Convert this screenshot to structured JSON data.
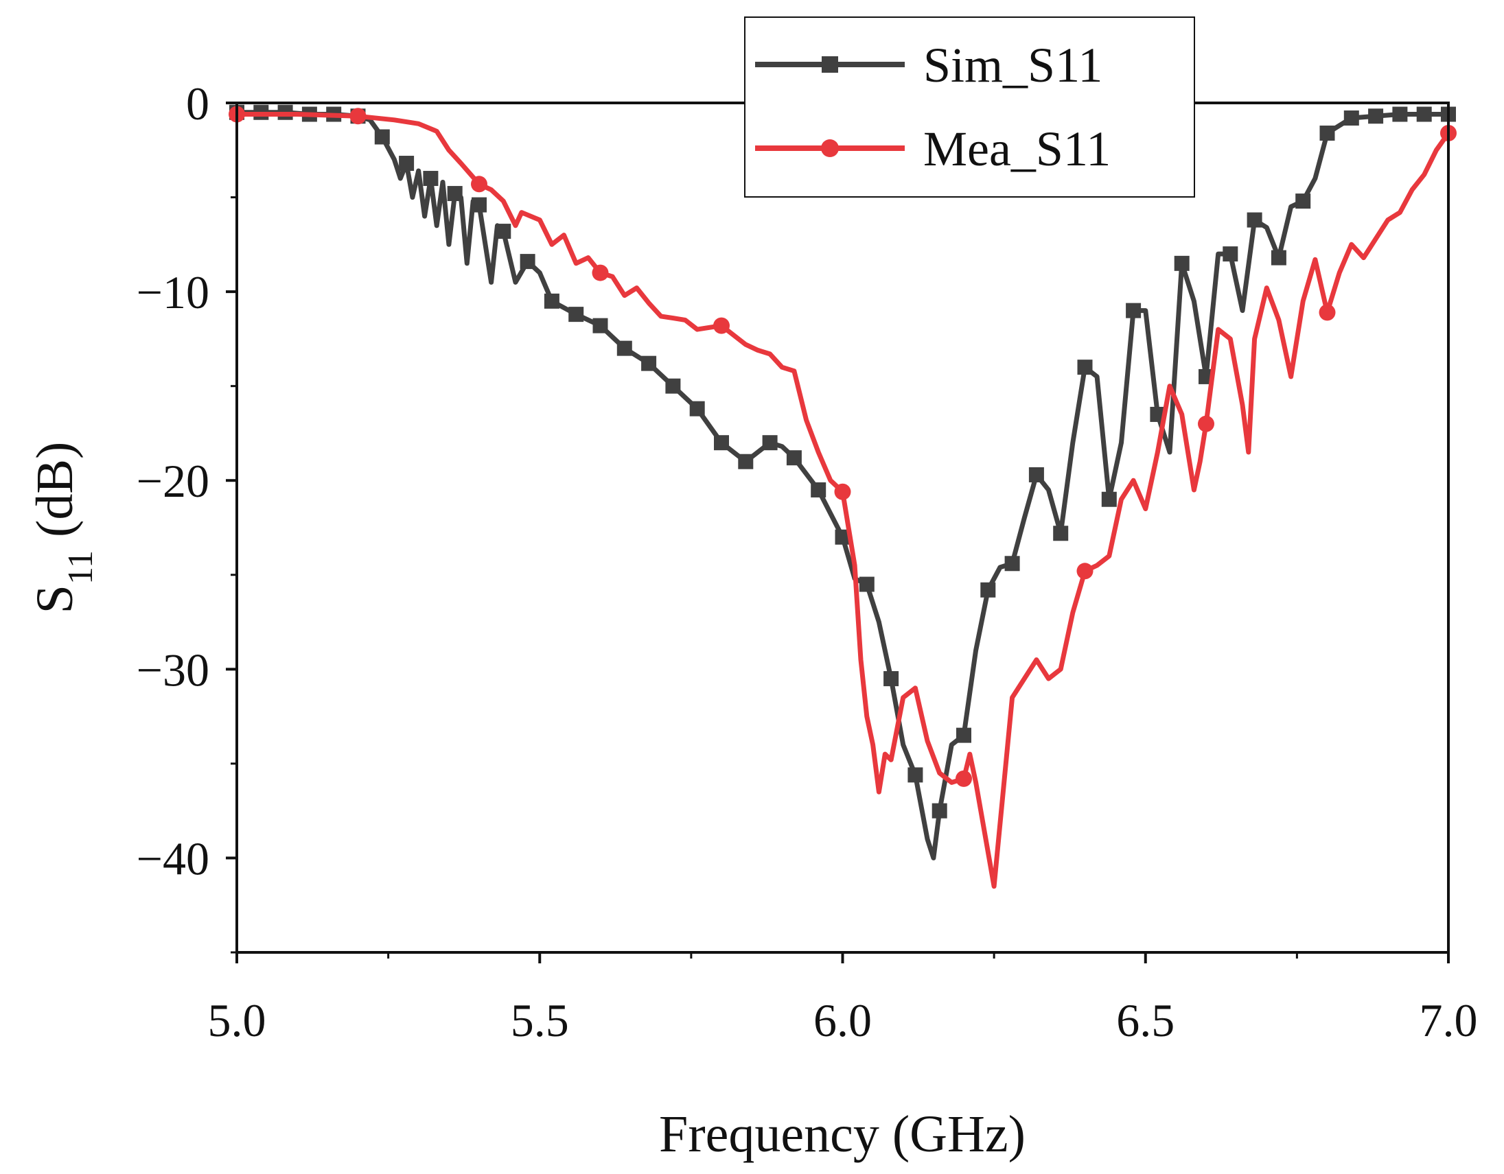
{
  "chart_data": {
    "type": "line",
    "xlabel": "Frequency (GHz)",
    "ylabel_main": "S",
    "ylabel_sub": "11",
    "ylabel_unit": " (dB)",
    "xlim": [
      5.0,
      7.0
    ],
    "ylim": [
      -45,
      0
    ],
    "xticks": [
      5.0,
      5.5,
      6.0,
      6.5,
      7.0
    ],
    "xtick_labels": [
      "5.0",
      "5.5",
      "6.0",
      "6.5",
      "7.0"
    ],
    "yticks": [
      0,
      -10,
      -20,
      -30,
      -40
    ],
    "ytick_labels": [
      "0",
      "−10",
      "−20",
      "−30",
      "−40"
    ],
    "grid": false,
    "legend_position": "top-right",
    "series": [
      {
        "name": "Sim_S11",
        "color": "#404040",
        "marker": "square",
        "marker_x": [
          5.0,
          5.04,
          5.08,
          5.12,
          5.16,
          5.2,
          5.24,
          5.28,
          5.32,
          5.36,
          5.4,
          5.44,
          5.48,
          5.52,
          5.56,
          5.6,
          5.64,
          5.68,
          5.72,
          5.76,
          5.8,
          5.84,
          5.88,
          5.92,
          5.96,
          6.0,
          6.04,
          6.08,
          6.12,
          6.16,
          6.2,
          6.24,
          6.28,
          6.32,
          6.36,
          6.4,
          6.44,
          6.48,
          6.52,
          6.56,
          6.6,
          6.64,
          6.68,
          6.72,
          6.76,
          6.8,
          6.84,
          6.88,
          6.92,
          6.96,
          7.0
        ],
        "x": [
          5.0,
          5.04,
          5.08,
          5.12,
          5.16,
          5.2,
          5.22,
          5.24,
          5.26,
          5.27,
          5.28,
          5.29,
          5.3,
          5.31,
          5.32,
          5.33,
          5.34,
          5.35,
          5.36,
          5.37,
          5.38,
          5.39,
          5.4,
          5.42,
          5.43,
          5.44,
          5.46,
          5.48,
          5.5,
          5.52,
          5.56,
          5.6,
          5.64,
          5.68,
          5.72,
          5.76,
          5.8,
          5.84,
          5.88,
          5.9,
          5.92,
          5.96,
          6.0,
          6.02,
          6.04,
          6.06,
          6.08,
          6.1,
          6.12,
          6.14,
          6.15,
          6.16,
          6.18,
          6.2,
          6.22,
          6.24,
          6.26,
          6.28,
          6.3,
          6.32,
          6.34,
          6.36,
          6.38,
          6.4,
          6.42,
          6.44,
          6.46,
          6.48,
          6.5,
          6.52,
          6.54,
          6.56,
          6.58,
          6.6,
          6.62,
          6.64,
          6.66,
          6.68,
          6.7,
          6.72,
          6.74,
          6.76,
          6.78,
          6.8,
          6.84,
          6.88,
          6.92,
          6.96,
          7.0
        ],
        "y": [
          -0.5,
          -0.5,
          -0.5,
          -0.6,
          -0.6,
          -0.7,
          -0.9,
          -1.8,
          -3.0,
          -4.0,
          -3.2,
          -5.0,
          -3.6,
          -6.0,
          -4.0,
          -6.5,
          -4.2,
          -7.5,
          -4.8,
          -5.0,
          -8.5,
          -5.2,
          -5.4,
          -9.5,
          -6.5,
          -6.8,
          -9.5,
          -8.4,
          -9.0,
          -10.5,
          -11.2,
          -11.8,
          -13.0,
          -13.8,
          -15.0,
          -16.2,
          -18.0,
          -19.0,
          -18.0,
          -18.2,
          -18.8,
          -20.5,
          -23.0,
          -25.2,
          -25.5,
          -27.5,
          -30.5,
          -34.0,
          -35.6,
          -39.0,
          -40.0,
          -37.5,
          -34.0,
          -33.5,
          -29.0,
          -25.8,
          -24.6,
          -24.4,
          -22.0,
          -19.7,
          -20.5,
          -22.8,
          -18.0,
          -14.0,
          -14.5,
          -21.0,
          -18.0,
          -11.0,
          -11.0,
          -16.5,
          -18.5,
          -8.5,
          -10.5,
          -14.5,
          -8.0,
          -8.0,
          -11.0,
          -6.2,
          -6.6,
          -8.2,
          -5.5,
          -5.2,
          -4.0,
          -1.6,
          -0.8,
          -0.7,
          -0.6,
          -0.6,
          -0.6
        ]
      },
      {
        "name": "Mea_S11",
        "color": "#e8383d",
        "marker": "circle",
        "marker_x": [
          5.0,
          5.2,
          5.4,
          5.6,
          5.8,
          6.0,
          6.2,
          6.4,
          6.6,
          6.8,
          7.0
        ],
        "x": [
          5.0,
          5.1,
          5.2,
          5.26,
          5.3,
          5.33,
          5.35,
          5.37,
          5.4,
          5.42,
          5.44,
          5.46,
          5.47,
          5.5,
          5.52,
          5.54,
          5.56,
          5.58,
          5.6,
          5.62,
          5.64,
          5.66,
          5.68,
          5.7,
          5.72,
          5.74,
          5.76,
          5.8,
          5.84,
          5.86,
          5.88,
          5.9,
          5.92,
          5.94,
          5.96,
          5.98,
          6.0,
          6.02,
          6.03,
          6.04,
          6.05,
          6.06,
          6.07,
          6.08,
          6.1,
          6.12,
          6.14,
          6.16,
          6.18,
          6.2,
          6.21,
          6.22,
          6.25,
          6.28,
          6.32,
          6.34,
          6.36,
          6.38,
          6.4,
          6.42,
          6.44,
          6.46,
          6.48,
          6.5,
          6.52,
          6.54,
          6.56,
          6.58,
          6.59,
          6.6,
          6.62,
          6.64,
          6.66,
          6.67,
          6.68,
          6.7,
          6.72,
          6.74,
          6.76,
          6.78,
          6.8,
          6.82,
          6.84,
          6.86,
          6.88,
          6.9,
          6.92,
          6.94,
          6.96,
          6.98,
          7.0
        ],
        "y": [
          -0.6,
          -0.6,
          -0.7,
          -0.9,
          -1.1,
          -1.5,
          -2.5,
          -3.2,
          -4.3,
          -4.6,
          -5.2,
          -6.5,
          -5.8,
          -6.2,
          -7.5,
          -7.0,
          -8.5,
          -8.2,
          -9.0,
          -9.2,
          -10.2,
          -9.8,
          -10.6,
          -11.3,
          -11.4,
          -11.5,
          -12.0,
          -11.8,
          -12.8,
          -13.1,
          -13.3,
          -14.0,
          -14.2,
          -16.8,
          -18.5,
          -20.0,
          -20.6,
          -24.5,
          -29.5,
          -32.5,
          -34.0,
          -36.5,
          -34.5,
          -34.8,
          -31.5,
          -31.0,
          -33.8,
          -35.5,
          -36.0,
          -35.8,
          -34.5,
          -36.0,
          -41.5,
          -31.5,
          -29.5,
          -30.5,
          -30.0,
          -27.0,
          -24.8,
          -24.5,
          -24.0,
          -21.0,
          -20.0,
          -21.5,
          -18.5,
          -15.0,
          -16.5,
          -20.5,
          -19.0,
          -17.0,
          -12.0,
          -12.5,
          -16.0,
          -18.5,
          -12.5,
          -9.8,
          -11.5,
          -14.5,
          -10.5,
          -8.3,
          -11.1,
          -9.0,
          -7.5,
          -8.2,
          -7.2,
          -6.2,
          -5.8,
          -4.6,
          -3.8,
          -2.5,
          -1.6
        ]
      }
    ]
  }
}
